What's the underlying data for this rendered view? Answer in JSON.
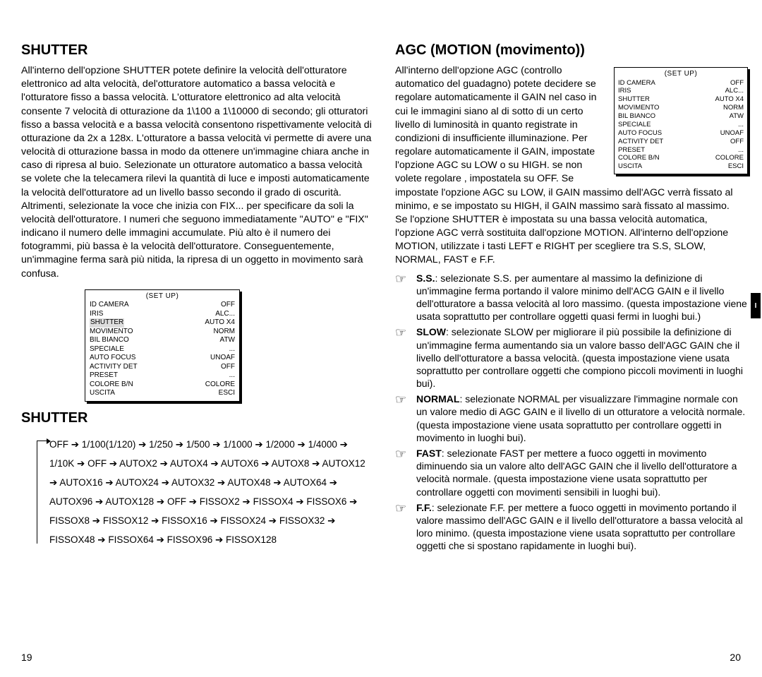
{
  "left": {
    "heading1": "SHUTTER",
    "para1": "All'interno dell'opzione SHUTTER potete definire la velocità dell'otturatore elettronico ad alta velocità, del'otturatore automatico a bassa velocità e l'otturatore fisso a bassa velocità. L'otturatore elettronico ad alta velocità consente 7 velocità di otturazione da 1\\100 a 1\\10000 di secondo; gli otturatori fisso a bassa velocità e a bassa velocità consentono rispettivamente velocità di otturazione da 2x a 128x. L'otturatore a bassa velocità vi permette di avere una velocità di otturazione bassa in modo da ottenere un'immagine chiara anche in caso di ripresa al buio. Selezionate un otturatore automatico a bassa velocità se volete che la telecamera rilevi la quantità di luce e imposti automaticamente la velocità dell'otturatore ad un livello basso secondo il grado di oscurità. Altrimenti, selezionate la voce che inizia con FIX... per specificare da soli la velocità dell'otturatore. I numeri che seguono immediatamente \"AUTO\" e \"FIX\" indicano il numero delle immagini accumulate. Più alto è il numero dei fotogrammi, più bassa è la velocità dell'otturatore. Conseguentemente, un'immagine ferma sarà più nitida, la ripresa di un oggetto in movimento sarà confusa.",
    "setup": {
      "title": "(SET UP)",
      "rows": [
        {
          "k": "ID CAMERA",
          "v": "OFF"
        },
        {
          "k": "IRIS",
          "v": "ALC..."
        },
        {
          "k": "SHUTTER",
          "v": "AUTO X4",
          "hl": true
        },
        {
          "k": "MOVIMENTO",
          "v": "NORM"
        },
        {
          "k": "BIL BIANCO",
          "v": "ATW"
        },
        {
          "k": "SPECIALE",
          "v": "..."
        },
        {
          "k": "AUTO FOCUS",
          "v": "UNOAF"
        },
        {
          "k": "ACTIVITY DET",
          "v": "OFF"
        },
        {
          "k": "PRESET",
          "v": "..."
        },
        {
          "k": "COLORE B/N",
          "v": "COLORE"
        },
        {
          "k": "USCITA",
          "v": "ESCI"
        }
      ]
    },
    "heading2": "SHUTTER",
    "chain": "OFF ➔ 1/100(1/120) ➔ 1/250 ➔ 1/500 ➔ 1/1000 ➔ 1/2000 ➔ 1/4000 ➔ 1/10K ➔ OFF ➔ AUTOX2 ➔ AUTOX4 ➔ AUTOX6 ➔ AUTOX8 ➔ AUTOX12 ➔ AUTOX16 ➔ AUTOX24 ➔ AUTOX32 ➔ AUTOX48 ➔ AUTOX64 ➔ AUTOX96 ➔ AUTOX128 ➔ OFF ➔ FISSOX2 ➔ FISSOX4 ➔ FISSOX6 ➔ FISSOX8 ➔ FISSOX12 ➔ FISSOX16 ➔  FISSOX24 ➔ FISSOX32 ➔ FISSOX48 ➔ FISSOX64 ➔ FISSOX96 ➔ FISSOX128",
    "page_num": "19"
  },
  "right": {
    "heading": "AGC (MOTION (movimento))",
    "para_top": "All'interno dell'opzione AGC (controllo automatico del guadagno) potete decidere se regolare automaticamente il GAIN nel caso in cui le immagini siano al di sotto di un certo livello di luminosità in quanto registrate in condizioni di insufficiente illuminazione. Per regolare automaticamente il GAIN, impostate l'opzione AGC su LOW o su HIGH. se non volete regolare , impostatela su OFF. Se impostate l'opzione AGC su LOW, il GAIN massimo dell'AGC verrà fissato al minimo, e se impostato su HIGH, il GAIN massimo sarà fissato al massimo.\nSe l'opzione SHUTTER è impostata su una bassa velocità automatica, l'opzione AGC verrà sostituita dall'opzione MOTION. All'interno dell'opzione MOTION, utilizzate i tasti LEFT e RIGHT per scegliere tra S.S, SLOW, NORMAL, FAST e F.F.",
    "setup": {
      "title": "(SET UP)",
      "rows": [
        {
          "k": "ID CAMERA",
          "v": "OFF"
        },
        {
          "k": "IRIS",
          "v": "ALC..."
        },
        {
          "k": "SHUTTER",
          "v": "AUTO X4"
        },
        {
          "k": "MOVIMENTO",
          "v": "NORM"
        },
        {
          "k": "BIL BIANCO",
          "v": "ATW"
        },
        {
          "k": "SPECIALE",
          "v": "..."
        },
        {
          "k": "AUTO FOCUS",
          "v": "UNOAF"
        },
        {
          "k": "ACTIVITY DET",
          "v": "OFF"
        },
        {
          "k": "PRESET",
          "v": "..."
        },
        {
          "k": "COLORE B/N",
          "v": "COLORE"
        },
        {
          "k": "USCITA",
          "v": "ESCI"
        }
      ]
    },
    "notes": [
      {
        "label": "S.S.",
        "text": ": selezionate S.S. per aumentare al massimo la definizione di un'immagine ferma portando il valore minimo dell'ACG GAIN e il livello dell'otturatore a bassa velocità al loro massimo. (questa impostazione viene usata soprattutto per controllare oggetti quasi fermi in luoghi bui.)"
      },
      {
        "label": "SLOW",
        "text": ": selezionate SLOW per migliorare il più possibile la definizione di un'immagine ferma aumentando sia un valore basso dell'AGC GAIN che il livello dell'otturatore a bassa velocità. (questa impostazione viene usata soprattutto per controllare oggetti che compiono piccoli movimenti in luoghi bui)."
      },
      {
        "label": "NORMAL",
        "text": ": selezionate NORMAL per visualizzare l'immagine normale con un valore medio di AGC GAIN e il livello di un otturatore a velocità normale. (questa impostazione viene usata soprattutto per controllare oggetti in movimento in luoghi bui)."
      },
      {
        "label": "FAST",
        "text": ": selezionate FAST per mettere a fuoco oggetti in movimento diminuendo sia un valore alto dell'AGC GAIN che il livello dell'otturatore a velocità normale. (questa impostazione viene usata soprattutto per controllare oggetti con movimenti sensibili in luoghi bui)."
      },
      {
        "label": "F.F.",
        "text": ": selezionate F.F. per mettere a fuoco oggetti in movimento portando il valore massimo  dell'AGC GAIN e il livello dell'otturatore a bassa velocità al loro minimo. (questa impostazione viene usata soprattutto per controllare oggetti che si spostano rapidamente in luoghi bui)."
      }
    ],
    "page_num": "20",
    "tab": "I"
  }
}
